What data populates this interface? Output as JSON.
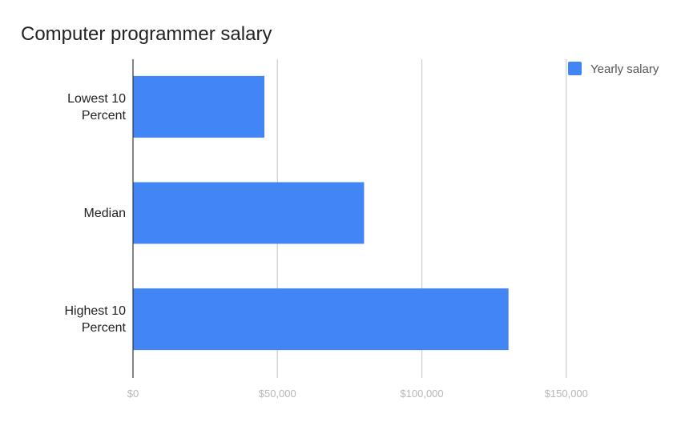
{
  "chart_data": {
    "type": "bar",
    "orientation": "horizontal",
    "title": "Computer programmer salary",
    "xlabel": "",
    "ylabel": "",
    "categories": [
      [
        "Lowest 10",
        "Percent"
      ],
      [
        "Median"
      ],
      [
        "Highest 10",
        "Percent"
      ]
    ],
    "series": [
      {
        "name": "Yearly salary",
        "color": "#4285f4",
        "values": [
          45500,
          80000,
          130000
        ]
      }
    ],
    "xlim": [
      0,
      190000
    ],
    "ticks": [
      {
        "value": 0,
        "label": "$0"
      },
      {
        "value": 50000,
        "label": "$50,000"
      },
      {
        "value": 100000,
        "label": "$100,000"
      },
      {
        "value": 150000,
        "label": "$150,000"
      }
    ],
    "grid": true,
    "legend_position": "top-right"
  }
}
